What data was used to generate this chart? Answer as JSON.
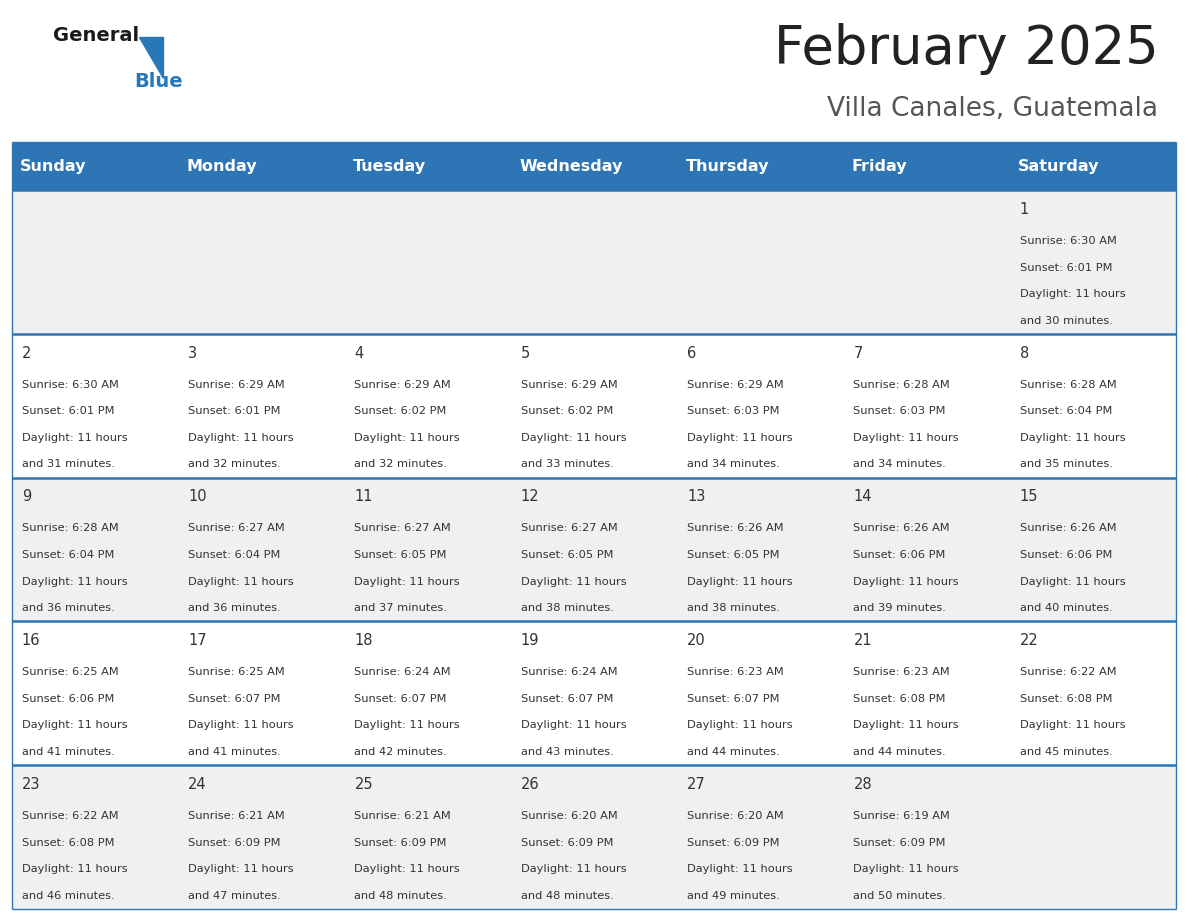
{
  "title": "February 2025",
  "subtitle": "Villa Canales, Guatemala",
  "header_bg_color": "#2E75B6",
  "header_text_color": "#FFFFFF",
  "day_names": [
    "Sunday",
    "Monday",
    "Tuesday",
    "Wednesday",
    "Thursday",
    "Friday",
    "Saturday"
  ],
  "row_bg_odd": "#F0F0F0",
  "row_bg_even": "#FFFFFF",
  "separator_color": "#2E75B6",
  "date_color": "#333333",
  "info_color": "#333333",
  "title_color": "#222222",
  "subtitle_color": "#555555",
  "logo_general_color": "#1A1A1A",
  "logo_blue_color": "#2878B8",
  "calendar_data": [
    {
      "day": 1,
      "col": 6,
      "row": 0,
      "sunrise": "6:30 AM",
      "sunset": "6:01 PM",
      "daylight_min": "30 minutes."
    },
    {
      "day": 2,
      "col": 0,
      "row": 1,
      "sunrise": "6:30 AM",
      "sunset": "6:01 PM",
      "daylight_min": "31 minutes."
    },
    {
      "day": 3,
      "col": 1,
      "row": 1,
      "sunrise": "6:29 AM",
      "sunset": "6:01 PM",
      "daylight_min": "32 minutes."
    },
    {
      "day": 4,
      "col": 2,
      "row": 1,
      "sunrise": "6:29 AM",
      "sunset": "6:02 PM",
      "daylight_min": "32 minutes."
    },
    {
      "day": 5,
      "col": 3,
      "row": 1,
      "sunrise": "6:29 AM",
      "sunset": "6:02 PM",
      "daylight_min": "33 minutes."
    },
    {
      "day": 6,
      "col": 4,
      "row": 1,
      "sunrise": "6:29 AM",
      "sunset": "6:03 PM",
      "daylight_min": "34 minutes."
    },
    {
      "day": 7,
      "col": 5,
      "row": 1,
      "sunrise": "6:28 AM",
      "sunset": "6:03 PM",
      "daylight_min": "34 minutes."
    },
    {
      "day": 8,
      "col": 6,
      "row": 1,
      "sunrise": "6:28 AM",
      "sunset": "6:04 PM",
      "daylight_min": "35 minutes."
    },
    {
      "day": 9,
      "col": 0,
      "row": 2,
      "sunrise": "6:28 AM",
      "sunset": "6:04 PM",
      "daylight_min": "36 minutes."
    },
    {
      "day": 10,
      "col": 1,
      "row": 2,
      "sunrise": "6:27 AM",
      "sunset": "6:04 PM",
      "daylight_min": "36 minutes."
    },
    {
      "day": 11,
      "col": 2,
      "row": 2,
      "sunrise": "6:27 AM",
      "sunset": "6:05 PM",
      "daylight_min": "37 minutes."
    },
    {
      "day": 12,
      "col": 3,
      "row": 2,
      "sunrise": "6:27 AM",
      "sunset": "6:05 PM",
      "daylight_min": "38 minutes."
    },
    {
      "day": 13,
      "col": 4,
      "row": 2,
      "sunrise": "6:26 AM",
      "sunset": "6:05 PM",
      "daylight_min": "38 minutes."
    },
    {
      "day": 14,
      "col": 5,
      "row": 2,
      "sunrise": "6:26 AM",
      "sunset": "6:06 PM",
      "daylight_min": "39 minutes."
    },
    {
      "day": 15,
      "col": 6,
      "row": 2,
      "sunrise": "6:26 AM",
      "sunset": "6:06 PM",
      "daylight_min": "40 minutes."
    },
    {
      "day": 16,
      "col": 0,
      "row": 3,
      "sunrise": "6:25 AM",
      "sunset": "6:06 PM",
      "daylight_min": "41 minutes."
    },
    {
      "day": 17,
      "col": 1,
      "row": 3,
      "sunrise": "6:25 AM",
      "sunset": "6:07 PM",
      "daylight_min": "41 minutes."
    },
    {
      "day": 18,
      "col": 2,
      "row": 3,
      "sunrise": "6:24 AM",
      "sunset": "6:07 PM",
      "daylight_min": "42 minutes."
    },
    {
      "day": 19,
      "col": 3,
      "row": 3,
      "sunrise": "6:24 AM",
      "sunset": "6:07 PM",
      "daylight_min": "43 minutes."
    },
    {
      "day": 20,
      "col": 4,
      "row": 3,
      "sunrise": "6:23 AM",
      "sunset": "6:07 PM",
      "daylight_min": "44 minutes."
    },
    {
      "day": 21,
      "col": 5,
      "row": 3,
      "sunrise": "6:23 AM",
      "sunset": "6:08 PM",
      "daylight_min": "44 minutes."
    },
    {
      "day": 22,
      "col": 6,
      "row": 3,
      "sunrise": "6:22 AM",
      "sunset": "6:08 PM",
      "daylight_min": "45 minutes."
    },
    {
      "day": 23,
      "col": 0,
      "row": 4,
      "sunrise": "6:22 AM",
      "sunset": "6:08 PM",
      "daylight_min": "46 minutes."
    },
    {
      "day": 24,
      "col": 1,
      "row": 4,
      "sunrise": "6:21 AM",
      "sunset": "6:09 PM",
      "daylight_min": "47 minutes."
    },
    {
      "day": 25,
      "col": 2,
      "row": 4,
      "sunrise": "6:21 AM",
      "sunset": "6:09 PM",
      "daylight_min": "48 minutes."
    },
    {
      "day": 26,
      "col": 3,
      "row": 4,
      "sunrise": "6:20 AM",
      "sunset": "6:09 PM",
      "daylight_min": "48 minutes."
    },
    {
      "day": 27,
      "col": 4,
      "row": 4,
      "sunrise": "6:20 AM",
      "sunset": "6:09 PM",
      "daylight_min": "49 minutes."
    },
    {
      "day": 28,
      "col": 5,
      "row": 4,
      "sunrise": "6:19 AM",
      "sunset": "6:09 PM",
      "daylight_min": "50 minutes."
    }
  ],
  "num_rows": 5,
  "num_cols": 7,
  "figsize": [
    11.88,
    9.18
  ]
}
